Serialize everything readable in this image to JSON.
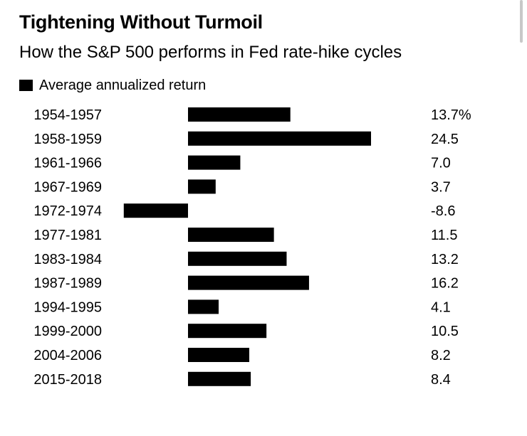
{
  "chart_data": {
    "type": "bar",
    "orientation": "horizontal",
    "title": "Tightening Without Turmoil",
    "subtitle": "How the S&P 500 performs in Fed rate-hike cycles",
    "legend_position": "top-left",
    "grid": false,
    "categories": [
      "1954-1957",
      "1958-1959",
      "1961-1966",
      "1967-1969",
      "1972-1974",
      "1977-1981",
      "1983-1984",
      "1987-1989",
      "1994-1995",
      "1999-2000",
      "2004-2006",
      "2015-2018"
    ],
    "series": [
      {
        "name": "Average annualized return",
        "color": "#000000",
        "values": [
          13.7,
          24.5,
          7.0,
          3.7,
          -8.6,
          11.5,
          13.2,
          16.2,
          4.1,
          10.5,
          8.2,
          8.4
        ]
      }
    ],
    "value_labels": [
      "13.7%",
      "24.5",
      "7.0",
      "3.7",
      "-8.6",
      "11.5",
      "13.2",
      "16.2",
      "4.1",
      "10.5",
      "8.2",
      "8.4"
    ]
  }
}
